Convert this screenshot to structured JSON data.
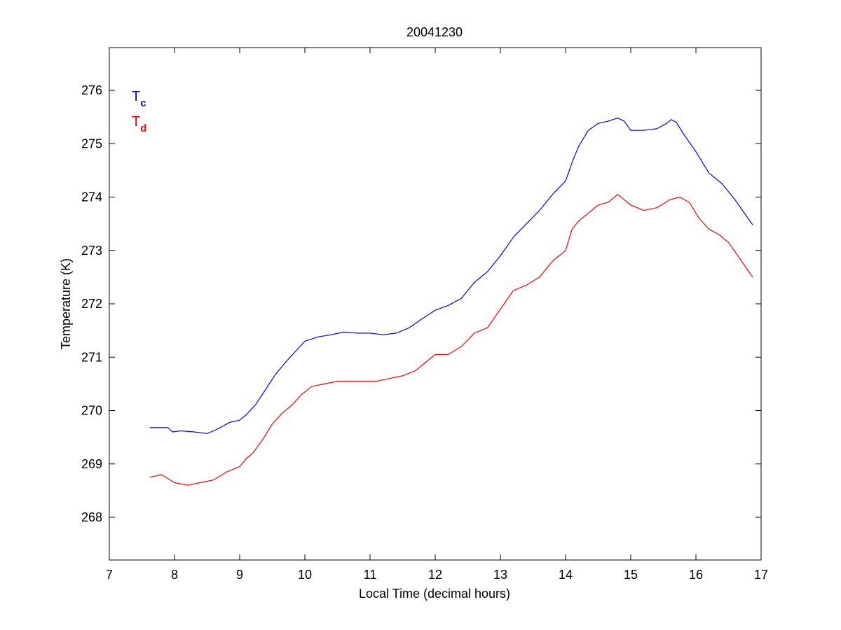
{
  "chart_data": {
    "type": "line",
    "title": "20041230",
    "xlabel": "Local Time (decimal hours)",
    "ylabel": "Temperature (K)",
    "xlim": [
      7,
      17
    ],
    "ylim": [
      267.2,
      276.8
    ],
    "xticks": [
      7,
      8,
      9,
      10,
      11,
      12,
      13,
      14,
      15,
      16,
      17
    ],
    "yticks": [
      268,
      269,
      270,
      271,
      272,
      273,
      274,
      275,
      276
    ],
    "grid": false,
    "legend_position": "top-left",
    "colors": {
      "tc": "#0000ff",
      "td": "#ff0000",
      "axes": "#000000",
      "background": "#ffffff"
    },
    "legend": [
      {
        "main": "T",
        "sub": "c",
        "color": "#0000ff"
      },
      {
        "main": "T",
        "sub": "d",
        "color": "#ff0000"
      }
    ],
    "series": [
      {
        "color": "#0000ff",
        "x": [
          7.62,
          7.9,
          7.97,
          8.1,
          8.3,
          8.5,
          8.6,
          8.7,
          8.85,
          9.0,
          9.1,
          9.25,
          9.4,
          9.55,
          9.7,
          9.85,
          10.0,
          10.2,
          10.4,
          10.6,
          10.8,
          11.0,
          11.2,
          11.4,
          11.6,
          11.8,
          12.0,
          12.2,
          12.4,
          12.6,
          12.8,
          13.0,
          13.2,
          13.4,
          13.6,
          13.8,
          14.0,
          14.1,
          14.2,
          14.35,
          14.5,
          14.65,
          14.8,
          14.9,
          15.0,
          15.2,
          15.4,
          15.55,
          15.62,
          15.7,
          15.8,
          16.0,
          16.2,
          16.4,
          16.6,
          16.8,
          16.87
        ],
        "y": [
          269.68,
          269.68,
          269.6,
          269.62,
          269.6,
          269.57,
          269.62,
          269.68,
          269.78,
          269.82,
          269.92,
          270.12,
          270.4,
          270.68,
          270.9,
          271.1,
          271.3,
          271.38,
          271.42,
          271.47,
          271.45,
          271.45,
          271.42,
          271.45,
          271.55,
          271.72,
          271.88,
          271.97,
          272.1,
          272.4,
          272.6,
          272.9,
          273.25,
          273.5,
          273.75,
          274.05,
          274.3,
          274.65,
          274.95,
          275.25,
          275.38,
          275.42,
          275.48,
          275.42,
          275.25,
          275.25,
          275.28,
          275.38,
          275.45,
          275.4,
          275.2,
          274.85,
          274.45,
          274.25,
          273.95,
          273.6,
          273.48
        ]
      },
      {
        "color": "#ff0000",
        "x": [
          7.62,
          7.8,
          8.0,
          8.2,
          8.4,
          8.6,
          8.8,
          9.0,
          9.1,
          9.2,
          9.35,
          9.5,
          9.65,
          9.8,
          9.95,
          10.1,
          10.3,
          10.5,
          10.7,
          10.9,
          11.1,
          11.3,
          11.5,
          11.7,
          11.85,
          12.0,
          12.2,
          12.4,
          12.6,
          12.8,
          13.0,
          13.2,
          13.4,
          13.6,
          13.8,
          14.0,
          14.1,
          14.2,
          14.35,
          14.5,
          14.65,
          14.8,
          15.0,
          15.2,
          15.4,
          15.6,
          15.75,
          15.9,
          16.05,
          16.2,
          16.35,
          16.5,
          16.7,
          16.87
        ],
        "y": [
          268.75,
          268.8,
          268.65,
          268.6,
          268.65,
          268.7,
          268.85,
          268.95,
          269.1,
          269.2,
          269.45,
          269.75,
          269.95,
          270.1,
          270.3,
          270.45,
          270.5,
          270.55,
          270.55,
          270.55,
          270.55,
          270.6,
          270.65,
          270.75,
          270.9,
          271.05,
          271.05,
          271.2,
          271.45,
          271.55,
          271.9,
          272.25,
          272.35,
          272.5,
          272.8,
          273.0,
          273.4,
          273.55,
          273.7,
          273.85,
          273.9,
          274.05,
          273.85,
          273.75,
          273.8,
          273.95,
          274.0,
          273.9,
          273.6,
          273.4,
          273.3,
          273.15,
          272.8,
          272.5
        ]
      }
    ]
  }
}
